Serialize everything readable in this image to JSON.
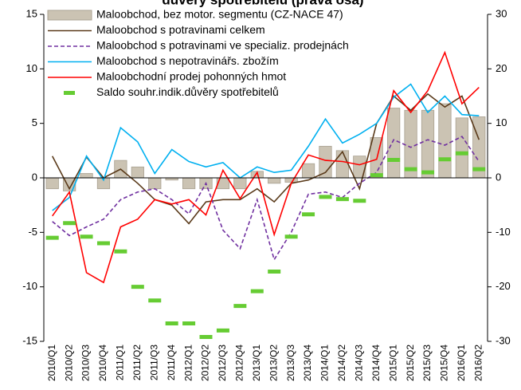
{
  "chart_data": {
    "type": "combo",
    "title": "důvěry spotřebitelů (pravá osa)",
    "categories": [
      "2010/Q1",
      "2010/Q2",
      "2010/Q3",
      "2010/Q4",
      "2011/Q1",
      "2011/Q2",
      "2011/Q3",
      "2011/Q4",
      "2012/Q1",
      "2012/Q2",
      "2012/Q3",
      "2012/Q4",
      "2013/Q1",
      "2013/Q2",
      "2013/Q3",
      "2013/Q4",
      "2014/Q1",
      "2014/Q2",
      "2014/Q3",
      "2014/Q4",
      "2015/Q1",
      "2015/Q2",
      "2015/Q3",
      "2015/Q4",
      "2016/Q1",
      "2016/Q2"
    ],
    "ylim": [
      -15,
      15
    ],
    "yticks": [
      -15,
      -10,
      -5,
      0,
      5,
      10,
      15
    ],
    "y2lim": [
      -30,
      30
    ],
    "y2ticks": [
      -30,
      -20,
      -10,
      0,
      10,
      20,
      30
    ],
    "grid": false,
    "series": [
      {
        "name": "Maloobchod, bez motor. segmentu (CZ-NACE 47)",
        "type": "bar",
        "color": "#cbc3b3",
        "values": [
          -1,
          -1.2,
          0.4,
          -1,
          1.6,
          1,
          -1,
          -0.2,
          -1,
          -1,
          -1,
          -1,
          0.6,
          -0.5,
          -0.4,
          1.3,
          2.9,
          2.5,
          2,
          3.7,
          6.4,
          6.2,
          6.2,
          6.8,
          5.5,
          5.6
        ]
      },
      {
        "name": "Maloobchod s potravinami celkem",
        "type": "line",
        "color": "#5a3a1a",
        "values": [
          2,
          -1,
          1.9,
          0,
          0.8,
          -0.5,
          -2,
          -2.5,
          -4.2,
          -2.2,
          -2,
          -2,
          -1,
          -2.2,
          -0.5,
          -0.2,
          0.5,
          2.4,
          -1,
          5,
          7.5,
          6.2,
          7.7,
          6.5,
          7.5,
          3.5
        ]
      },
      {
        "name": "Maloobchod s potravinami ve specializ. prodejnách",
        "type": "dashed",
        "color": "#7030a0",
        "values": [
          -4,
          -5.3,
          -4.5,
          -3.8,
          -2,
          -1.3,
          -1,
          -2,
          -3.3,
          -0.5,
          -4.8,
          -6.5,
          -2,
          -7.5,
          -5,
          -1.5,
          -1.3,
          -1.8,
          -0.5,
          0.5,
          3.5,
          2.8,
          3.5,
          3,
          3.8,
          1.5
        ]
      },
      {
        "name": "Maloobchod s nepotravinářs. zbožím",
        "type": "line",
        "color": "#00b0f0",
        "values": [
          -3,
          -1.8,
          2,
          -0.2,
          4.6,
          3.3,
          0.4,
          2.6,
          1.5,
          1,
          1.4,
          0,
          1,
          0.5,
          0.7,
          2.9,
          5.4,
          3.2,
          4,
          5,
          7.4,
          8.6,
          6,
          7.5,
          5.8,
          5.7
        ]
      },
      {
        "name": "Maloobchodní prodej pohonných hmot",
        "type": "line",
        "color": "#ff0000",
        "values": [
          -3.5,
          -1.3,
          -8.7,
          -9.6,
          -4.5,
          -3.8,
          -2,
          -2.4,
          -2,
          -3.4,
          0.7,
          -1.9,
          0.5,
          -5.2,
          -0.5,
          2.1,
          1.6,
          1.5,
          1.2,
          1.7,
          8,
          6,
          8,
          11.5,
          6.8,
          8.3
        ]
      },
      {
        "name": "Saldo souhr.indik.důvěry spotřebitelů",
        "type": "marker",
        "axis": "y2",
        "color": "#66cc33",
        "values": [
          -11,
          -8.3,
          -10.8,
          -12,
          -13.5,
          -20,
          -22.5,
          -26.7,
          -26.7,
          -29.2,
          -28,
          -23.5,
          -20.8,
          -17.2,
          -10.8,
          -6.7,
          -3.5,
          -3.9,
          -4.2,
          0.5,
          3.3,
          1.6,
          1,
          3.4,
          4.5,
          1.6
        ]
      }
    ]
  }
}
